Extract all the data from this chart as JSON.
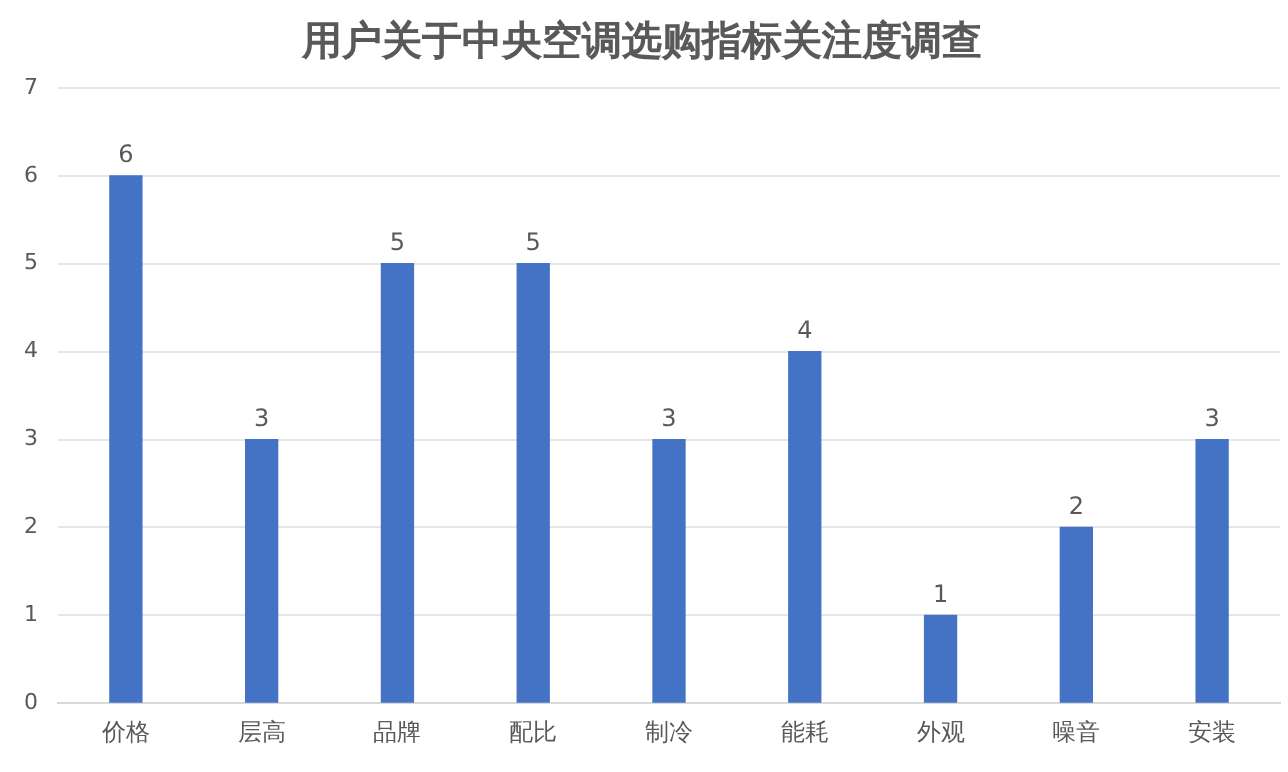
{
  "chart_data": {
    "type": "bar",
    "title": "用户关于中央空调选购指标关注度调查",
    "categories": [
      "价格",
      "层高",
      "品牌",
      "配比",
      "制冷",
      "能耗",
      "外观",
      "噪音",
      "安装"
    ],
    "values": [
      6,
      3,
      5,
      5,
      3,
      4,
      1,
      2,
      3
    ],
    "color": "#4472c4",
    "ylim": [
      0,
      7
    ],
    "yticks": [
      0,
      1,
      2,
      3,
      4,
      5,
      6,
      7
    ],
    "grid": "y",
    "data_labels": true,
    "legend": false
  }
}
